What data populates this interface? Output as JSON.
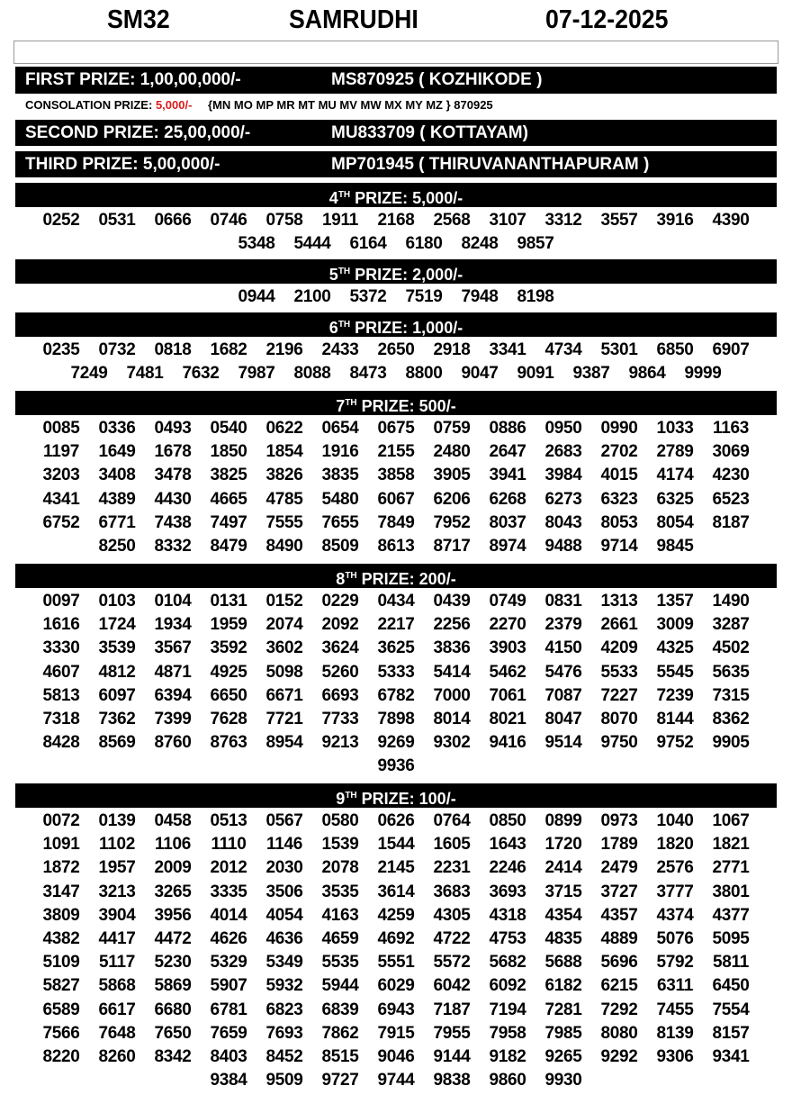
{
  "header": {
    "code": "SM32",
    "name": "SAMRUDHI",
    "date": "07-12-2025"
  },
  "first_prize": {
    "label": "FIRST PRIZE: 1,00,00,000/-",
    "winner": "MS870925 ( KOZHIKODE )"
  },
  "consolation": {
    "label": "CONSOLATION PRIZE: ",
    "amount": "5,000/-",
    "series": "{MN MO MP MR MT MU MV MW MX MY MZ } 870925",
    "amount_color": "#e01b1b"
  },
  "second_prize": {
    "label": "SECOND PRIZE: 25,00,000/-",
    "winner": "MU833709 ( KOTTAYAM)"
  },
  "third_prize": {
    "label": "THIRD PRIZE: 5,00,000/-",
    "winner": "MP701945 ( THIRUVANANTHAPURAM )"
  },
  "prizes": [
    {
      "ord": "4",
      "sup": "TH",
      "label": " PRIZE: 5,000/-",
      "numbers": [
        "0252",
        "0531",
        "0666",
        "0746",
        "0758",
        "1911",
        "2168",
        "2568",
        "3107",
        "3312",
        "3557",
        "3916",
        "4390",
        "5348",
        "5444",
        "6164",
        "6180",
        "8248",
        "9857"
      ]
    },
    {
      "ord": "5",
      "sup": "TH",
      "label": " PRIZE: 2,000/-",
      "numbers": [
        "0944",
        "2100",
        "5372",
        "7519",
        "7948",
        "8198"
      ]
    },
    {
      "ord": "6",
      "sup": "TH",
      "label": " PRIZE: 1,000/-",
      "numbers": [
        "0235",
        "0732",
        "0818",
        "1682",
        "2196",
        "2433",
        "2650",
        "2918",
        "3341",
        "4734",
        "5301",
        "6850",
        "6907",
        "7249",
        "7481",
        "7632",
        "7987",
        "8088",
        "8473",
        "8800",
        "9047",
        "9091",
        "9387",
        "9864",
        "9999"
      ]
    },
    {
      "ord": "7",
      "sup": "TH",
      "label": " PRIZE: 500/-",
      "numbers": [
        "0085",
        "0336",
        "0493",
        "0540",
        "0622",
        "0654",
        "0675",
        "0759",
        "0886",
        "0950",
        "0990",
        "1033",
        "1163",
        "1197",
        "1649",
        "1678",
        "1850",
        "1854",
        "1916",
        "2155",
        "2480",
        "2647",
        "2683",
        "2702",
        "2789",
        "3069",
        "3203",
        "3408",
        "3478",
        "3825",
        "3826",
        "3835",
        "3858",
        "3905",
        "3941",
        "3984",
        "4015",
        "4174",
        "4230",
        "4341",
        "4389",
        "4430",
        "4665",
        "4785",
        "5480",
        "6067",
        "6206",
        "6268",
        "6273",
        "6323",
        "6325",
        "6523",
        "6752",
        "6771",
        "7438",
        "7497",
        "7555",
        "7655",
        "7849",
        "7952",
        "8037",
        "8043",
        "8053",
        "8054",
        "8187",
        "8250",
        "8332",
        "8479",
        "8490",
        "8509",
        "8613",
        "8717",
        "8974",
        "9488",
        "9714",
        "9845"
      ]
    },
    {
      "ord": "8",
      "sup": "TH",
      "label": " PRIZE: 200/-",
      "numbers": [
        "0097",
        "0103",
        "0104",
        "0131",
        "0152",
        "0229",
        "0434",
        "0439",
        "0749",
        "0831",
        "1313",
        "1357",
        "1490",
        "1616",
        "1724",
        "1934",
        "1959",
        "2074",
        "2092",
        "2217",
        "2256",
        "2270",
        "2379",
        "2661",
        "3009",
        "3287",
        "3330",
        "3539",
        "3567",
        "3592",
        "3602",
        "3624",
        "3625",
        "3836",
        "3903",
        "4150",
        "4209",
        "4325",
        "4502",
        "4607",
        "4812",
        "4871",
        "4925",
        "5098",
        "5260",
        "5333",
        "5414",
        "5462",
        "5476",
        "5533",
        "5545",
        "5635",
        "5813",
        "6097",
        "6394",
        "6650",
        "6671",
        "6693",
        "6782",
        "7000",
        "7061",
        "7087",
        "7227",
        "7239",
        "7315",
        "7318",
        "7362",
        "7399",
        "7628",
        "7721",
        "7733",
        "7898",
        "8014",
        "8021",
        "8047",
        "8070",
        "8144",
        "8362",
        "8428",
        "8569",
        "8760",
        "8763",
        "8954",
        "9213",
        "9269",
        "9302",
        "9416",
        "9514",
        "9750",
        "9752",
        "9905",
        "9936"
      ]
    },
    {
      "ord": "9",
      "sup": "TH",
      "label": " PRIZE: 100/-",
      "numbers": [
        "0072",
        "0139",
        "0458",
        "0513",
        "0567",
        "0580",
        "0626",
        "0764",
        "0850",
        "0899",
        "0973",
        "1040",
        "1067",
        "1091",
        "1102",
        "1106",
        "1110",
        "1146",
        "1539",
        "1544",
        "1605",
        "1643",
        "1720",
        "1789",
        "1820",
        "1821",
        "1872",
        "1957",
        "2009",
        "2012",
        "2030",
        "2078",
        "2145",
        "2231",
        "2246",
        "2414",
        "2479",
        "2576",
        "2771",
        "3147",
        "3213",
        "3265",
        "3335",
        "3506",
        "3535",
        "3614",
        "3683",
        "3693",
        "3715",
        "3727",
        "3777",
        "3801",
        "3809",
        "3904",
        "3956",
        "4014",
        "4054",
        "4163",
        "4259",
        "4305",
        "4318",
        "4354",
        "4357",
        "4374",
        "4377",
        "4382",
        "4417",
        "4472",
        "4626",
        "4636",
        "4659",
        "4692",
        "4722",
        "4753",
        "4835",
        "4889",
        "5076",
        "5095",
        "5109",
        "5117",
        "5230",
        "5329",
        "5349",
        "5535",
        "5551",
        "5572",
        "5682",
        "5688",
        "5696",
        "5792",
        "5811",
        "5827",
        "5868",
        "5869",
        "5907",
        "5932",
        "5944",
        "6029",
        "6042",
        "6092",
        "6182",
        "6215",
        "6311",
        "6450",
        "6589",
        "6617",
        "6680",
        "6781",
        "6823",
        "6839",
        "6943",
        "7187",
        "7194",
        "7281",
        "7292",
        "7455",
        "7554",
        "7566",
        "7648",
        "7650",
        "7659",
        "7693",
        "7862",
        "7915",
        "7955",
        "7958",
        "7985",
        "8080",
        "8139",
        "8157",
        "8220",
        "8260",
        "8342",
        "8403",
        "8452",
        "8515",
        "9046",
        "9144",
        "9182",
        "9265",
        "9292",
        "9306",
        "9341",
        "9384",
        "9509",
        "9727",
        "9744",
        "9838",
        "9860",
        "9930"
      ]
    }
  ]
}
